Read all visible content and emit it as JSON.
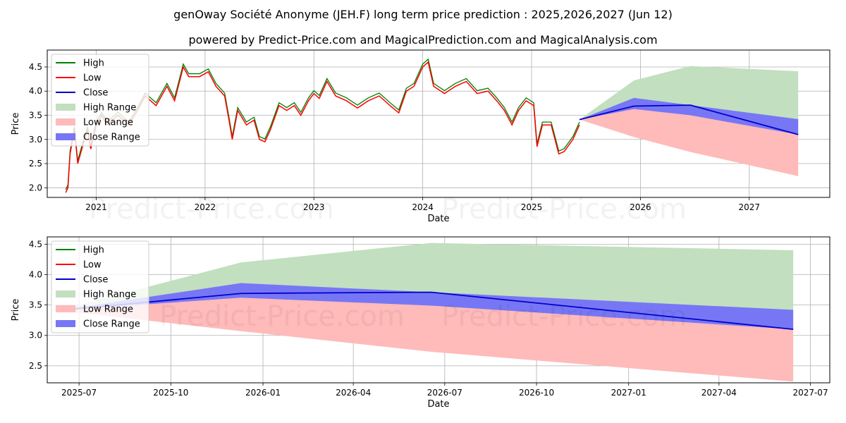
{
  "title_line1": "genOway Société Anonyme (JEH.F) long term price prediction : 2025,2026,2027 (Jun 12)",
  "title_line2": "powered by Predict-Price.com and MagicalPrediction.com and MagicalAnalysis.com",
  "watermark": "Predict-Price.com",
  "legend": {
    "high": "High",
    "low": "Low",
    "close": "Close",
    "high_range": "High Range",
    "low_range": "Low Range",
    "close_range": "Close Range"
  },
  "colors": {
    "high": "#008000",
    "low": "#ff0000",
    "close": "#0000cc",
    "high_range": "#c2dfc0",
    "low_range": "#ffbaba",
    "close_range": "#7777f5"
  },
  "chart_data": [
    {
      "type": "line",
      "title": "genOway Société Anonyme (JEH.F) long term price prediction : 2025,2026,2027 (Jun 12)",
      "xlabel": "Date",
      "ylabel": "Price",
      "xlim": [
        2020.55,
        2027.74
      ],
      "ylim": [
        1.8,
        4.85
      ],
      "x_ticks": [
        {
          "v": 2021,
          "label": "2021"
        },
        {
          "v": 2022,
          "label": "2022"
        },
        {
          "v": 2023,
          "label": "2023"
        },
        {
          "v": 2024,
          "label": "2024"
        },
        {
          "v": 2025,
          "label": "2025"
        },
        {
          "v": 2026,
          "label": "2026"
        },
        {
          "v": 2027,
          "label": "2027"
        }
      ],
      "y_ticks": [
        {
          "v": 2.0,
          "label": "2.0"
        },
        {
          "v": 2.5,
          "label": "2.5"
        },
        {
          "v": 3.0,
          "label": "3.0"
        },
        {
          "v": 3.5,
          "label": "3.5"
        },
        {
          "v": 4.0,
          "label": "4.0"
        },
        {
          "v": 4.5,
          "label": "4.5"
        }
      ],
      "history_low": [
        [
          2020.72,
          1.9
        ],
        [
          2020.74,
          2.0
        ],
        [
          2020.76,
          2.7
        ],
        [
          2020.8,
          3.2
        ],
        [
          2020.83,
          2.5
        ],
        [
          2020.88,
          2.9
        ],
        [
          2020.92,
          3.2
        ],
        [
          2020.95,
          2.8
        ],
        [
          2021.0,
          3.3
        ],
        [
          2021.05,
          3.5
        ],
        [
          2021.1,
          3.3
        ],
        [
          2021.2,
          3.5
        ],
        [
          2021.3,
          3.3
        ],
        [
          2021.38,
          3.6
        ],
        [
          2021.45,
          3.9
        ],
        [
          2021.55,
          3.7
        ],
        [
          2021.65,
          4.1
        ],
        [
          2021.72,
          3.8
        ],
        [
          2021.8,
          4.5
        ],
        [
          2021.85,
          4.3
        ],
        [
          2021.95,
          4.3
        ],
        [
          2022.03,
          4.4
        ],
        [
          2022.1,
          4.1
        ],
        [
          2022.18,
          3.9
        ],
        [
          2022.22,
          3.4
        ],
        [
          2022.25,
          3.0
        ],
        [
          2022.3,
          3.6
        ],
        [
          2022.38,
          3.3
        ],
        [
          2022.45,
          3.4
        ],
        [
          2022.5,
          3.0
        ],
        [
          2022.55,
          2.95
        ],
        [
          2022.6,
          3.2
        ],
        [
          2022.68,
          3.7
        ],
        [
          2022.75,
          3.6
        ],
        [
          2022.82,
          3.7
        ],
        [
          2022.88,
          3.5
        ],
        [
          2022.95,
          3.8
        ],
        [
          2023.0,
          3.95
        ],
        [
          2023.05,
          3.85
        ],
        [
          2023.12,
          4.2
        ],
        [
          2023.2,
          3.9
        ],
        [
          2023.3,
          3.8
        ],
        [
          2023.4,
          3.65
        ],
        [
          2023.5,
          3.8
        ],
        [
          2023.6,
          3.9
        ],
        [
          2023.7,
          3.7
        ],
        [
          2023.78,
          3.55
        ],
        [
          2023.85,
          4.0
        ],
        [
          2023.92,
          4.1
        ],
        [
          2024.0,
          4.5
        ],
        [
          2024.05,
          4.6
        ],
        [
          2024.1,
          4.1
        ],
        [
          2024.2,
          3.95
        ],
        [
          2024.3,
          4.1
        ],
        [
          2024.4,
          4.2
        ],
        [
          2024.5,
          3.95
        ],
        [
          2024.6,
          4.0
        ],
        [
          2024.68,
          3.8
        ],
        [
          2024.75,
          3.6
        ],
        [
          2024.82,
          3.3
        ],
        [
          2024.88,
          3.6
        ],
        [
          2024.95,
          3.8
        ],
        [
          2025.02,
          3.7
        ],
        [
          2025.05,
          2.85
        ],
        [
          2025.1,
          3.3
        ],
        [
          2025.18,
          3.3
        ],
        [
          2025.25,
          2.7
        ],
        [
          2025.3,
          2.75
        ],
        [
          2025.38,
          3.0
        ],
        [
          2025.44,
          3.3
        ]
      ],
      "forecast": {
        "x": [
          2025.44,
          2025.94,
          2026.46,
          2027.45
        ],
        "close": [
          3.41,
          3.69,
          3.71,
          3.1
        ],
        "high_range": [
          [
            3.41,
            3.41
          ],
          [
            3.41,
            4.22
          ],
          [
            3.41,
            4.52
          ],
          [
            3.41,
            4.41
          ]
        ],
        "low_range": [
          [
            3.41,
            3.41
          ],
          [
            3.05,
            3.7
          ],
          [
            2.74,
            3.71
          ],
          [
            2.24,
            3.1
          ]
        ],
        "close_range": [
          [
            3.41,
            3.41
          ],
          [
            3.63,
            3.86
          ],
          [
            3.5,
            3.71
          ],
          [
            3.1,
            3.42
          ]
        ]
      }
    },
    {
      "type": "line",
      "title": "",
      "xlabel": "Date",
      "ylabel": "Price",
      "xlim": [
        2025.41,
        2027.55
      ],
      "ylim": [
        2.22,
        4.62
      ],
      "x_ticks": [
        {
          "v": 2025.497,
          "label": "2025-07"
        },
        {
          "v": 2025.748,
          "label": "2025-10"
        },
        {
          "v": 2026.0,
          "label": "2026-01"
        },
        {
          "v": 2026.247,
          "label": "2026-04"
        },
        {
          "v": 2026.497,
          "label": "2026-07"
        },
        {
          "v": 2026.748,
          "label": "2026-10"
        },
        {
          "v": 2027.0,
          "label": "2027-01"
        },
        {
          "v": 2027.247,
          "label": "2027-04"
        },
        {
          "v": 2027.497,
          "label": "2027-07"
        }
      ],
      "y_ticks": [
        {
          "v": 2.5,
          "label": "2.5"
        },
        {
          "v": 3.0,
          "label": "3.0"
        },
        {
          "v": 3.5,
          "label": "3.5"
        },
        {
          "v": 4.0,
          "label": "4.0"
        },
        {
          "v": 4.5,
          "label": "4.5"
        }
      ],
      "forecast": {
        "x": [
          2025.44,
          2025.94,
          2026.46,
          2027.45
        ],
        "close": [
          3.41,
          3.69,
          3.71,
          3.1
        ],
        "high_range": [
          [
            3.41,
            3.41
          ],
          [
            3.41,
            4.2
          ],
          [
            3.41,
            4.52
          ],
          [
            3.41,
            4.4
          ]
        ],
        "low_range": [
          [
            3.41,
            3.41
          ],
          [
            3.07,
            3.69
          ],
          [
            2.73,
            3.71
          ],
          [
            2.24,
            3.1
          ]
        ],
        "close_range": [
          [
            3.41,
            3.41
          ],
          [
            3.62,
            3.86
          ],
          [
            3.49,
            3.71
          ],
          [
            3.1,
            3.42
          ]
        ]
      }
    }
  ]
}
